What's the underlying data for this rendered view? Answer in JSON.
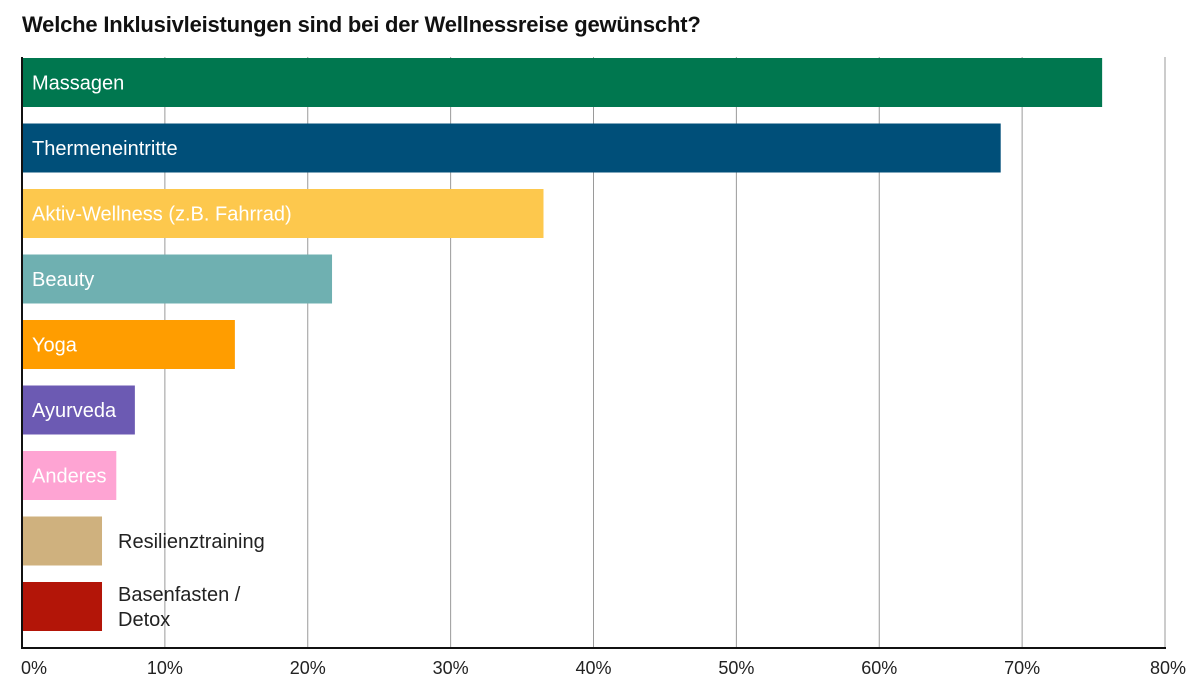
{
  "chart_data": {
    "type": "bar",
    "orientation": "horizontal",
    "title": "Welche Inklusivleistungen sind bei der Wellnessreise gewünscht?",
    "xlabel": "",
    "ylabel": "",
    "xlim": [
      0,
      80
    ],
    "x_ticks": [
      "0%",
      "10%",
      "20%",
      "30%",
      "40%",
      "50%",
      "60%",
      "70%",
      "80%"
    ],
    "grid": "vertical",
    "categories": [
      "Massagen",
      "Thermeneintritte",
      "Aktiv-Wellness (z.B. Fahrrad)",
      "Beauty",
      "Yoga",
      "Ayurveda",
      "Anderes",
      "Resilienztraining",
      "Basenfasten / Detox"
    ],
    "category_lines": [
      [
        "Massagen"
      ],
      [
        "Thermeneintritte"
      ],
      [
        "Aktiv-Wellness (z.B. Fahrrad)"
      ],
      [
        "Beauty"
      ],
      [
        "Yoga"
      ],
      [
        "Ayurveda"
      ],
      [
        "Anderes"
      ],
      [
        "Resilienztraining"
      ],
      [
        "Basenfasten /",
        "Detox"
      ]
    ],
    "values": [
      75.6,
      68.5,
      36.5,
      21.7,
      14.9,
      7.9,
      6.6,
      5.6,
      5.6
    ],
    "colors": [
      "#00774f",
      "#004f79",
      "#fdc84d",
      "#6fb0b1",
      "#ff9d00",
      "#6c5ab3",
      "#fea4d3",
      "#cfb17e",
      "#b31508"
    ],
    "label_colors": [
      "#ffffff",
      "#ffffff",
      "#ffffff",
      "#ffffff",
      "#ffffff",
      "#ffffff",
      "#ffffff",
      "#222222",
      "#222222"
    ],
    "label_position": [
      "inside",
      "inside",
      "inside",
      "inside",
      "inside",
      "inside",
      "inside",
      "outside",
      "outside"
    ]
  }
}
